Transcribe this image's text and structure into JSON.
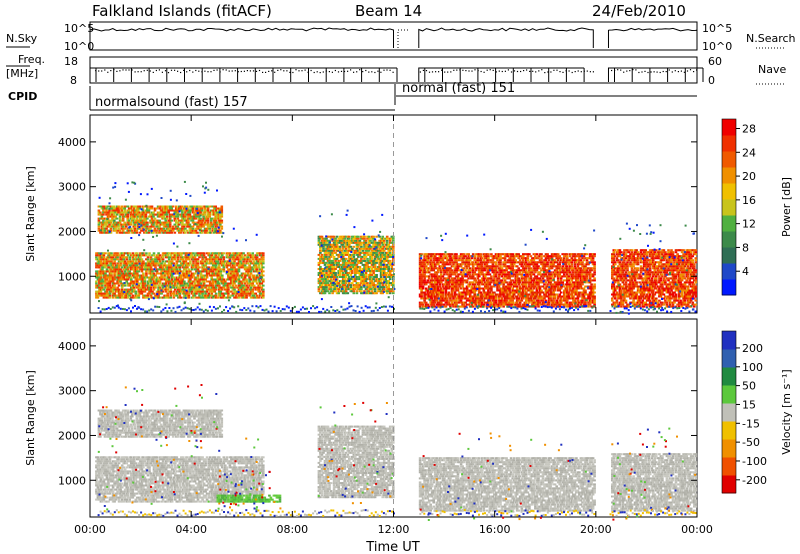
{
  "header": {
    "station": "Falkland Islands (fitACF)",
    "beam": "Beam 14",
    "date": "24/Feb/2010"
  },
  "summary": {
    "nsky_label": "N.Sky",
    "nsky_ticks": [
      "10^5",
      "10^0"
    ],
    "nsky_right_ticks": [
      "10^5",
      "10^0"
    ],
    "nsearch_label": "N.Search",
    "freq_label_1": "Freq.",
    "freq_label_2": "[MHz]",
    "freq_ticks": [
      "18",
      "8"
    ],
    "nave_ticks": [
      "60",
      "0"
    ],
    "nave_label": "Nave",
    "cpid_label": "CPID",
    "cpid_1": "normalsound (fast) 157",
    "cpid_2": "normal (fast) 151"
  },
  "chart_data": [
    {
      "type": "heatmap",
      "title": "",
      "ylabel": "Slant Range [km]",
      "xlabel": "",
      "xlim": [
        "00:00",
        "00:00"
      ],
      "ylim": [
        180,
        4600
      ],
      "y_ticks": [
        "1000",
        "2000",
        "3000",
        "4000"
      ],
      "x_ticks": [
        "00:00",
        "04:00",
        "08:00",
        "12:00",
        "16:00",
        "20:00",
        "00:00"
      ],
      "colorbar": {
        "label": "Power [dB]",
        "ticks": [
          "4",
          "8",
          "12",
          "16",
          "20",
          "24",
          "28"
        ],
        "colors": [
          "#0018ff",
          "#1f48c8",
          "#2f6e55",
          "#3c8a4a",
          "#50b040",
          "#c8c41c",
          "#f0c000",
          "#f09000",
          "#f05a00",
          "#f03000",
          "#f00000"
        ]
      },
      "bands": [
        {
          "t_start": 0.3,
          "t_end": 5.2,
          "r_low": 1950,
          "r_high": 2550,
          "level": "orange-red"
        },
        {
          "t_start": 0.2,
          "t_end": 6.8,
          "r_low": 500,
          "r_high": 1500,
          "level": "orange-red"
        },
        {
          "t_start": 9.0,
          "t_end": 12.0,
          "r_low": 600,
          "r_high": 1900,
          "level": "orange"
        },
        {
          "t_start": 13.0,
          "t_end": 19.9,
          "r_low": 300,
          "r_high": 1500,
          "level": "red"
        },
        {
          "t_start": 20.6,
          "t_end": 23.9,
          "r_low": 300,
          "r_high": 1600,
          "level": "red"
        }
      ]
    },
    {
      "type": "heatmap",
      "title": "",
      "ylabel": "Slant Range [km]",
      "xlabel": "Time UT",
      "xlim": [
        "00:00",
        "00:00"
      ],
      "ylim": [
        180,
        4600
      ],
      "y_ticks": [
        "1000",
        "2000",
        "3000",
        "4000"
      ],
      "x_ticks": [
        "00:00",
        "04:00",
        "08:00",
        "12:00",
        "16:00",
        "20:00",
        "00:00"
      ],
      "colorbar": {
        "label": "Velocity [m s⁻¹]",
        "ticks": [
          "200",
          "100",
          "50",
          "15",
          "-15",
          "-50",
          "-100",
          "-200"
        ],
        "colors": [
          "#2030c0",
          "#3060b0",
          "#208a40",
          "#5cc83c",
          "#c0c0b8",
          "#f0c000",
          "#f09000",
          "#f05000",
          "#e00000"
        ]
      },
      "bands": [
        {
          "t_start": 0.3,
          "t_end": 5.2,
          "r_low": 1950,
          "r_high": 2550,
          "level": "grey"
        },
        {
          "t_start": 0.2,
          "t_end": 6.8,
          "r_low": 500,
          "r_high": 1500,
          "level": "grey"
        },
        {
          "t_start": 5.0,
          "t_end": 7.5,
          "r_low": 500,
          "r_high": 650,
          "level": "green"
        },
        {
          "t_start": 9.0,
          "t_end": 12.0,
          "r_low": 600,
          "r_high": 2200,
          "level": "grey"
        },
        {
          "t_start": 13.0,
          "t_end": 19.9,
          "r_low": 300,
          "r_high": 1500,
          "level": "grey"
        },
        {
          "t_start": 20.6,
          "t_end": 23.9,
          "r_low": 300,
          "r_high": 1600,
          "level": "grey"
        }
      ]
    }
  ],
  "time_label": "Time UT"
}
